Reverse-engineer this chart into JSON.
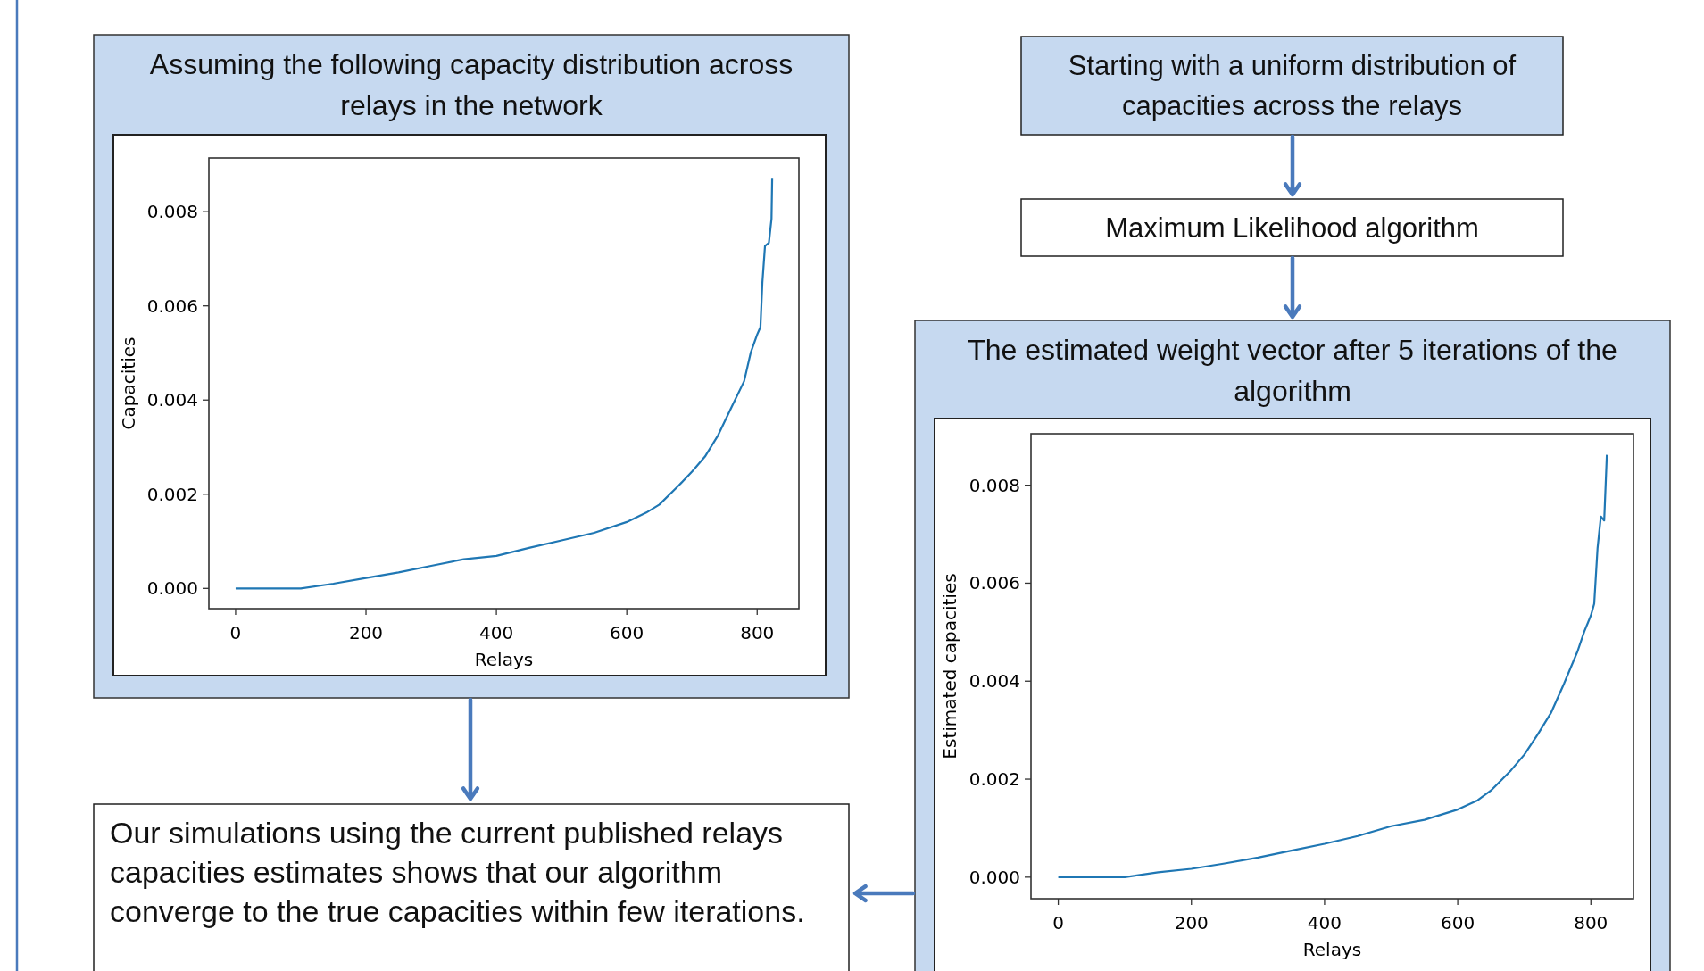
{
  "chart_data": [
    {
      "type": "line",
      "title": "Assuming the following capacity distribution across relays in the network",
      "xlabel": "Relays",
      "ylabel": "Capacities",
      "xlim": [
        -41,
        864
      ],
      "ylim": [
        -0.00043,
        0.00914
      ],
      "xticks": [
        0,
        200,
        400,
        600,
        800
      ],
      "yticks": [
        {
          "value": 0,
          "label": "0.000"
        },
        {
          "value": 0.002,
          "label": "0.002"
        },
        {
          "value": 0.004,
          "label": "0.004"
        },
        {
          "value": 0.006,
          "label": "0.006"
        },
        {
          "value": 0.008,
          "label": "0.008"
        }
      ],
      "x": [
        0,
        100,
        150,
        200,
        250,
        300,
        350,
        400,
        450,
        500,
        550,
        600,
        630,
        650,
        680,
        700,
        720,
        740,
        760,
        780,
        790,
        800,
        805,
        808,
        812,
        818,
        822,
        823
      ],
      "series": [
        {
          "color": "#1f77b4",
          "values": [
            0,
            0,
            0.0001,
            0.00022,
            0.00034,
            0.00048,
            0.00062,
            0.00069,
            0.00086,
            0.00102,
            0.00118,
            0.00141,
            0.00161,
            0.00178,
            0.00219,
            0.00248,
            0.0028,
            0.00325,
            0.00383,
            0.0044,
            0.005,
            0.00539,
            0.00555,
            0.0065,
            0.00727,
            0.00734,
            0.00785,
            0.0087
          ]
        }
      ]
    },
    {
      "type": "other",
      "title": "Starting with a uniform distribution of capacities across the relays"
    },
    {
      "type": "other",
      "title": "Maximum Likelihood algorithm"
    },
    {
      "type": "line",
      "title": "The estimated weight vector after 5 iterations of the algorithm",
      "xlabel": "Relays",
      "ylabel": "Estimated capacities",
      "xlim": [
        -41,
        864
      ],
      "ylim": [
        -0.00044,
        0.00905
      ],
      "xticks": [
        0,
        200,
        400,
        600,
        800
      ],
      "yticks": [
        {
          "value": 0,
          "label": "0.000"
        },
        {
          "value": 0.002,
          "label": "0.002"
        },
        {
          "value": 0.004,
          "label": "0.004"
        },
        {
          "value": 0.006,
          "label": "0.006"
        },
        {
          "value": 0.008,
          "label": "0.008"
        }
      ],
      "x": [
        0,
        100,
        150,
        200,
        250,
        300,
        350,
        400,
        450,
        500,
        550,
        600,
        630,
        650,
        680,
        700,
        720,
        740,
        760,
        780,
        790,
        800,
        805,
        810,
        815,
        820,
        824
      ],
      "series": [
        {
          "color": "#1f77b4",
          "values": [
            0,
            0,
            0.0001,
            0.00017,
            0.00028,
            0.0004,
            0.00054,
            0.00068,
            0.00084,
            0.00104,
            0.00117,
            0.00138,
            0.00157,
            0.00177,
            0.00218,
            0.0025,
            0.00291,
            0.00335,
            0.00396,
            0.00461,
            0.00501,
            0.00534,
            0.00558,
            0.00671,
            0.00736,
            0.00728,
            0.00862
          ]
        }
      ]
    },
    {
      "type": "other",
      "title": "Our simulations using the current published relays capacities estimates shows that our algorithm converge to the true capacities within few iterations."
    }
  ]
}
